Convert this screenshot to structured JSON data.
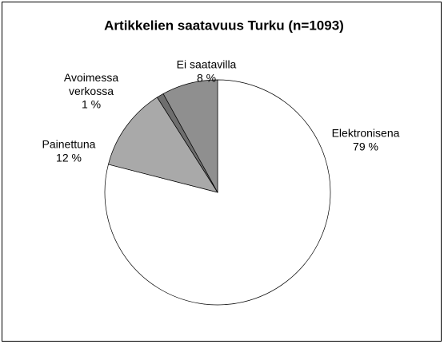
{
  "chart_data": {
    "type": "pie",
    "title": "Artikkelien saatavuus Turku (n=1093)",
    "categories": [
      "Elektronisena",
      "Painettuna",
      "Avoimessa verkossa",
      "Ei saatavilla"
    ],
    "values": [
      79,
      12,
      1,
      8
    ],
    "value_labels": [
      "79 %",
      "12 %",
      "1 %",
      "8 %"
    ],
    "colors": [
      "#ffffff",
      "#a9a9a9",
      "#6e6e6e",
      "#8f8f8f"
    ]
  }
}
